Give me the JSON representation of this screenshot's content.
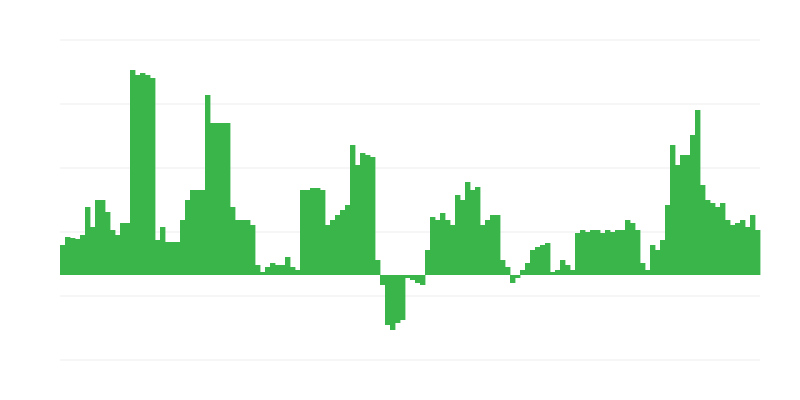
{
  "chart_data": {
    "type": "bar",
    "title": "",
    "xlabel": "",
    "ylabel": "",
    "ylim": [
      -85,
      235
    ],
    "gridlines": [
      235,
      171,
      107,
      43,
      -21,
      -85
    ],
    "grid": true,
    "legend": "none",
    "bar_color": "#39b54a",
    "grid_color": "#eeeeee",
    "values": [
      30,
      38,
      37,
      36,
      40,
      68,
      48,
      75,
      75,
      63,
      45,
      40,
      52,
      52,
      205,
      200,
      202,
      200,
      197,
      35,
      48,
      33,
      33,
      33,
      55,
      75,
      85,
      85,
      85,
      180,
      152,
      152,
      152,
      152,
      68,
      55,
      55,
      55,
      50,
      10,
      3,
      8,
      12,
      10,
      10,
      18,
      8,
      5,
      85,
      85,
      87,
      87,
      85,
      50,
      55,
      60,
      65,
      70,
      130,
      110,
      122,
      120,
      118,
      15,
      -10,
      -50,
      -55,
      -48,
      -45,
      -3,
      -5,
      -8,
      -10,
      25,
      58,
      55,
      62,
      55,
      50,
      80,
      75,
      93,
      85,
      88,
      50,
      55,
      60,
      60,
      15,
      8,
      -8,
      -3,
      5,
      12,
      25,
      28,
      30,
      32,
      3,
      5,
      15,
      10,
      5,
      42,
      45,
      43,
      45,
      45,
      42,
      45,
      43,
      45,
      45,
      55,
      52,
      45,
      12,
      5,
      30,
      25,
      35,
      70,
      130,
      110,
      120,
      120,
      140,
      165,
      90,
      75,
      72,
      68,
      72,
      55,
      50,
      52,
      55,
      48,
      60,
      45
    ]
  }
}
